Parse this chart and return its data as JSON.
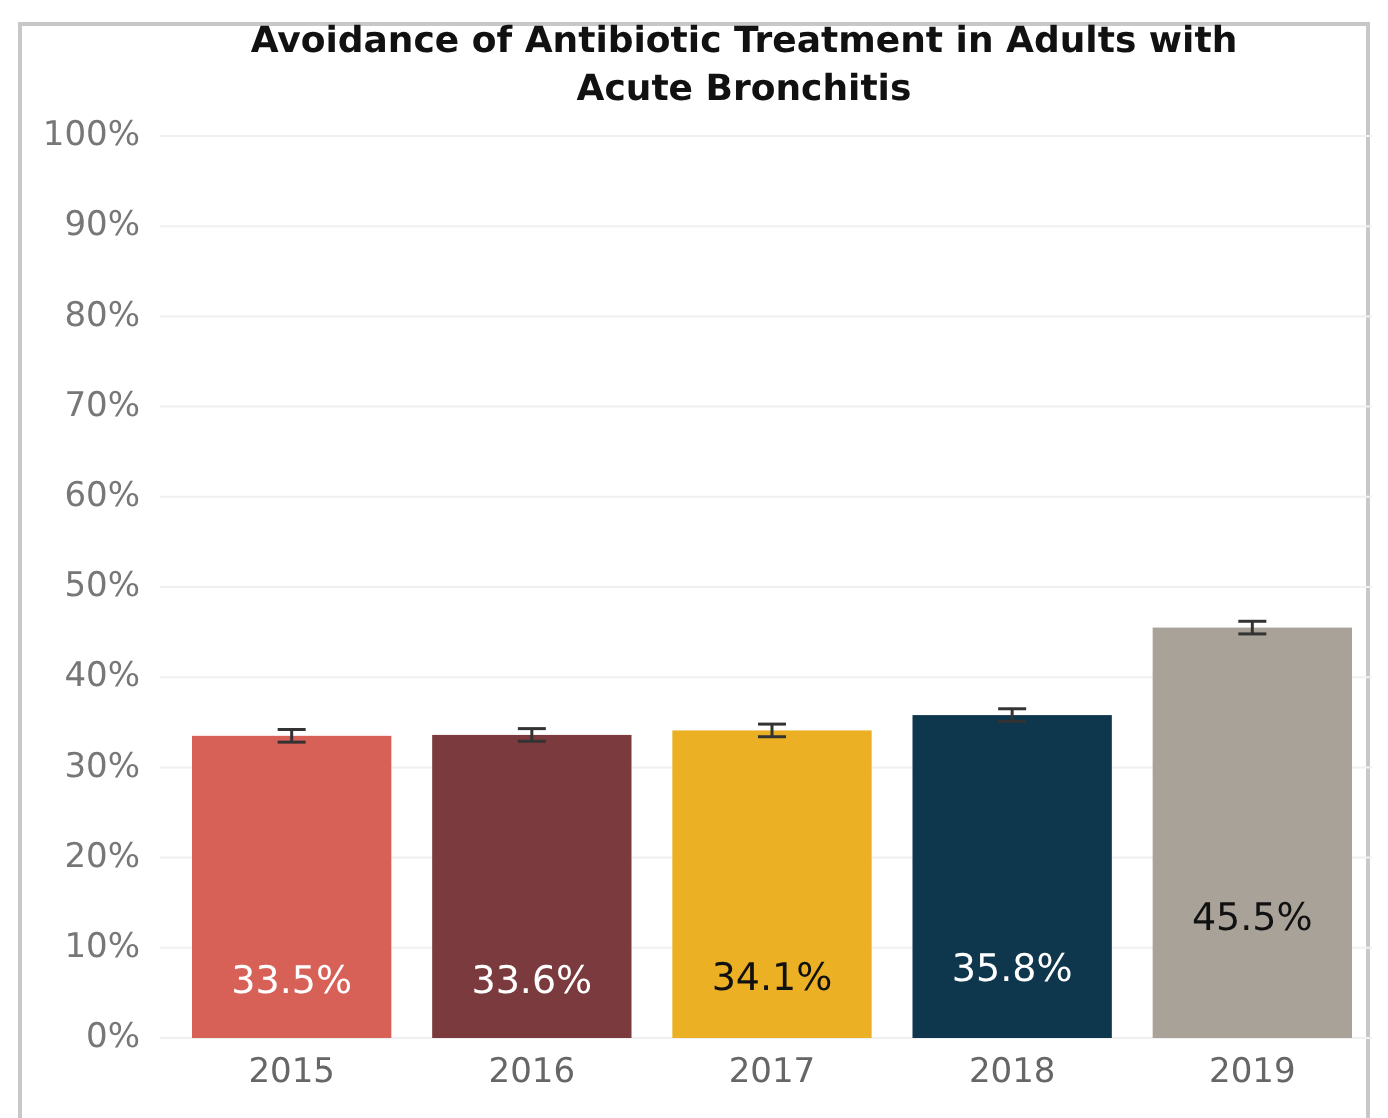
{
  "chart_data": {
    "type": "bar",
    "title": "Avoidance of Antibiotic Treatment in Adults with\nAcute Bronchitis",
    "categories": [
      "2015",
      "2016",
      "2017",
      "2018",
      "2019"
    ],
    "values": [
      33.5,
      33.6,
      34.1,
      35.8,
      45.5
    ],
    "colors": [
      "#d76157",
      "#7b3a3d",
      "#ebb023",
      "#0e374d",
      "#a8a298"
    ],
    "errors": [
      0.7,
      0.7,
      0.7,
      0.7,
      0.7
    ],
    "value_labels": [
      "33.5%",
      "33.6%",
      "34.1%",
      "35.8%",
      "45.5%"
    ],
    "ylim": [
      0,
      100
    ],
    "yticks": [
      {
        "value": 0,
        "label": "0%"
      },
      {
        "value": 10,
        "label": "10%"
      },
      {
        "value": 20,
        "label": "20%"
      },
      {
        "value": 30,
        "label": "30%"
      },
      {
        "value": 40,
        "label": "40%"
      },
      {
        "value": 50,
        "label": "50%"
      },
      {
        "value": 60,
        "label": "60%"
      },
      {
        "value": 70,
        "label": "70%"
      },
      {
        "value": 80,
        "label": "80%"
      },
      {
        "value": 90,
        "label": "90%"
      },
      {
        "value": 100,
        "label": "100%"
      }
    ],
    "grid": "y"
  }
}
